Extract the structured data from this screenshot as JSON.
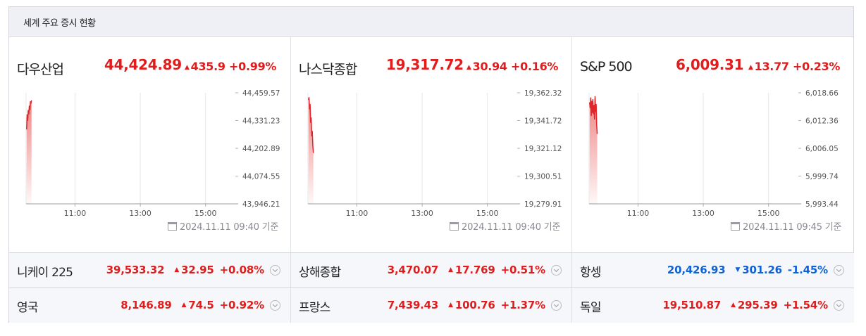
{
  "header": {
    "title": "세계 주요 증시 현황"
  },
  "panels": [
    {
      "name": "다우산업",
      "value": "44,424.89",
      "change": "435.9",
      "percent": "+0.99%",
      "stamp": "2024.11.11 09:40 기준"
    },
    {
      "name": "나스닥종합",
      "value": "19,317.72",
      "change": "30.94",
      "percent": "+0.16%",
      "stamp": "2024.11.11 09:40 기준"
    },
    {
      "name": "S&P 500",
      "value": "6,009.31",
      "change": "13.77",
      "percent": "+0.23%",
      "stamp": "2024.11.11 09:45 기준"
    }
  ],
  "rows": [
    [
      {
        "name": "니케이 225",
        "value": "39,533.32",
        "dir": "up",
        "change": "32.95",
        "percent": "+0.08%"
      },
      {
        "name": "상해종합",
        "value": "3,470.07",
        "dir": "up",
        "change": "17.769",
        "percent": "+0.51%"
      },
      {
        "name": "항셍",
        "value": "20,426.93",
        "dir": "down",
        "change": "301.26",
        "percent": "-1.45%"
      }
    ],
    [
      {
        "name": "영국",
        "value": "8,146.89",
        "dir": "up",
        "change": "74.5",
        "percent": "+0.92%"
      },
      {
        "name": "프랑스",
        "value": "7,439.43",
        "dir": "up",
        "change": "100.76",
        "percent": "+1.37%"
      },
      {
        "name": "독일",
        "value": "19,510.87",
        "dir": "up",
        "change": "295.39",
        "percent": "+1.54%"
      }
    ]
  ],
  "symbols": {
    "up": "▲",
    "down": "▼"
  },
  "colors": {
    "up": "#e21c1c",
    "down": "#0d62d8",
    "line": "#e0262b",
    "header_bg": "#eef0f6"
  },
  "chart_data": [
    {
      "type": "line",
      "series_label": "다우산업",
      "x": [
        "09:31",
        "09:32",
        "09:33",
        "09:34",
        "09:35",
        "09:36",
        "09:37",
        "09:38",
        "09:39",
        "09:40"
      ],
      "values": [
        44290,
        44360,
        44330,
        44380,
        44360,
        44400,
        44380,
        44420,
        44410,
        44424.89
      ],
      "x_ticks": [
        "11:00",
        "13:00",
        "15:00"
      ],
      "y_ticks": [
        "44,459.57",
        "44,331.23",
        "44,202.89",
        "44,074.55",
        "43,946.21"
      ],
      "ylim": [
        43946.21,
        44459.57
      ],
      "xlim": [
        "09:30",
        "16:00"
      ],
      "grid": true
    },
    {
      "type": "line",
      "series_label": "나스닥종합",
      "x": [
        "09:31",
        "09:32",
        "09:33",
        "09:34",
        "09:35",
        "09:36",
        "09:37",
        "09:38",
        "09:39",
        "09:40"
      ],
      "values": [
        19357,
        19359,
        19350,
        19354,
        19340,
        19344,
        19330,
        19334,
        19323,
        19317.72
      ],
      "x_ticks": [
        "11:00",
        "13:00",
        "15:00"
      ],
      "y_ticks": [
        "19,362.32",
        "19,341.72",
        "19,321.12",
        "19,300.51",
        "19,279.91"
      ],
      "ylim": [
        19279.91,
        19362.32
      ],
      "xlim": [
        "09:30",
        "16:00"
      ],
      "grid": true
    },
    {
      "type": "line",
      "series_label": "S&P 500",
      "x": [
        "09:31",
        "09:32",
        "09:33",
        "09:34",
        "09:35",
        "09:36",
        "09:37",
        "09:38",
        "09:39",
        "09:40",
        "09:41",
        "09:42",
        "09:43",
        "09:44",
        "09:45"
      ],
      "values": [
        6016.5,
        6015.2,
        6017.6,
        6013.4,
        6016.8,
        6014.1,
        6017.2,
        6013.8,
        6015.9,
        6012.6,
        6017.9,
        6014.3,
        6016.1,
        6011.2,
        6009.31
      ],
      "x_ticks": [
        "11:00",
        "13:00",
        "15:00"
      ],
      "y_ticks": [
        "6,018.66",
        "6,012.36",
        "6,006.05",
        "5,999.74",
        "5,993.44"
      ],
      "ylim": [
        5993.44,
        6018.66
      ],
      "xlim": [
        "09:30",
        "16:00"
      ],
      "grid": true
    }
  ]
}
